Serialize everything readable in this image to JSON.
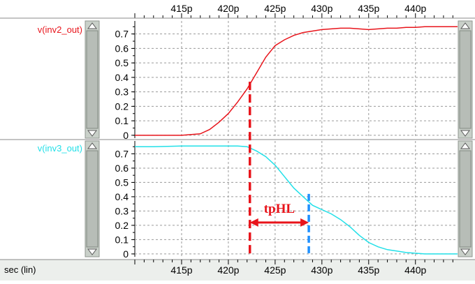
{
  "colors": {
    "background": "#ffffff",
    "grid": "#9a9a9a",
    "scrollbar_track": "#c9d0c9",
    "scrollbar_thumb": "#b7bdb7",
    "label_bar": "#ecefec",
    "annotation_red": "#e8141b",
    "annotation_blue": "#1e90ff"
  },
  "bottom_axis_label": "sec (lin)",
  "chart_data": [
    {
      "type": "line",
      "x_unit": "p (ps)",
      "xlim": [
        410,
        444.5
      ],
      "ylim": [
        -0.02,
        0.79
      ],
      "x_ticks": [
        415,
        420,
        425,
        430,
        435,
        440
      ],
      "x_tick_labels": [
        "415p",
        "420p",
        "425p",
        "430p",
        "435p",
        "440p"
      ],
      "y_ticks": [
        0,
        0.1,
        0.2,
        0.3,
        0.4,
        0.5,
        0.6,
        0.7
      ],
      "y_tick_labels": [
        "0",
        "0.1",
        "0.2",
        "0.3",
        "0.4",
        "0.5",
        "0.6",
        "0.7"
      ],
      "grid": true,
      "series": [
        {
          "name": "v(inv2_out)",
          "color": "#e8141b",
          "x": [
            410,
            412,
            415,
            417,
            418,
            419,
            420,
            421,
            422,
            423,
            424,
            425,
            426,
            427,
            428,
            429,
            430,
            431,
            432,
            433,
            434,
            435,
            436,
            437,
            438,
            439,
            440,
            441,
            442,
            443,
            444.5
          ],
          "y": [
            0.0,
            0.0,
            0.0,
            0.01,
            0.04,
            0.09,
            0.15,
            0.23,
            0.32,
            0.43,
            0.54,
            0.62,
            0.66,
            0.69,
            0.71,
            0.72,
            0.73,
            0.735,
            0.74,
            0.74,
            0.735,
            0.73,
            0.735,
            0.74,
            0.74,
            0.745,
            0.745,
            0.75,
            0.75,
            0.75,
            0.75
          ]
        }
      ]
    },
    {
      "type": "line",
      "x_unit": "p (ps)",
      "xlim": [
        410,
        444.5
      ],
      "ylim": [
        -0.02,
        0.79
      ],
      "x_ticks": [
        415,
        420,
        425,
        430,
        435,
        440
      ],
      "x_tick_labels": [
        "415p",
        "420p",
        "425p",
        "430p",
        "435p",
        "440p"
      ],
      "y_ticks": [
        0,
        0.1,
        0.2,
        0.3,
        0.4,
        0.5,
        0.6,
        0.7
      ],
      "y_tick_labels": [
        "0",
        "0.1",
        "0.2",
        "0.3",
        "0.4",
        "0.5",
        "0.6",
        "0.7"
      ],
      "grid": true,
      "series": [
        {
          "name": "v(inv3_out)",
          "color": "#22e0e8",
          "x": [
            410,
            412,
            415,
            418,
            420,
            421,
            422,
            423,
            424,
            425,
            426,
            427,
            428,
            429,
            430,
            431,
            432,
            433,
            434,
            435,
            436,
            437,
            438,
            439,
            440,
            441,
            442,
            443,
            444.5
          ],
          "y": [
            0.75,
            0.75,
            0.755,
            0.755,
            0.755,
            0.755,
            0.75,
            0.72,
            0.68,
            0.62,
            0.54,
            0.46,
            0.4,
            0.34,
            0.31,
            0.28,
            0.24,
            0.19,
            0.13,
            0.08,
            0.05,
            0.03,
            0.02,
            0.01,
            0.005,
            0.0,
            0.0,
            0.0,
            0.0
          ]
        }
      ]
    }
  ],
  "annotations": {
    "tphl_label": "tpHL",
    "tphl_start_x": 422.3,
    "tphl_start_top_y": 0.37,
    "tphl_end_x": 428.6,
    "tphl_end_top_y": 0.42,
    "tphl_arrow_y": 0.22
  }
}
